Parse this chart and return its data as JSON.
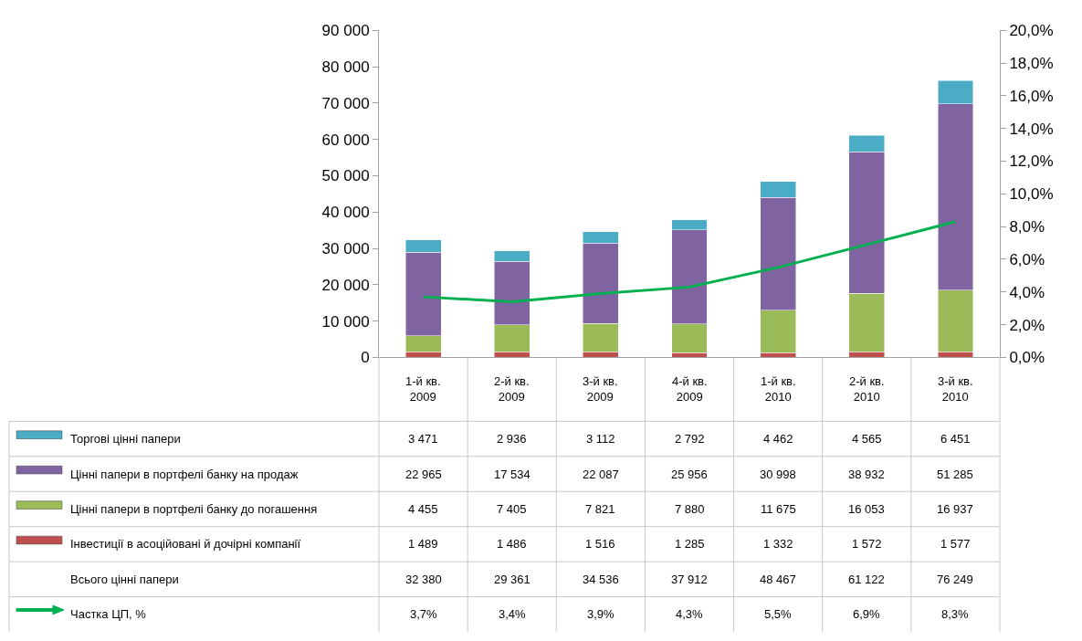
{
  "chart_data": {
    "type": "bar",
    "stacked": true,
    "data_labels": true,
    "legend": "bottom",
    "categories": [
      "1-й кв.\n2009",
      "2-й кв.\n2009",
      "3-й кв.\n2009",
      "4-й кв.\n2009",
      "1-й кв.\n2010",
      "2-й кв.\n2010",
      "3-й кв.\n2010"
    ],
    "series": [
      {
        "name": "Інвестиції в асоційовані й дочірні компанії",
        "color": "#c0504d",
        "values": [
          1489,
          1486,
          1516,
          1285,
          1332,
          1572,
          1577
        ]
      },
      {
        "name": "Цінні папери в портфелі банку до погашення",
        "color": "#9bbb59",
        "values": [
          4455,
          7405,
          7821,
          7880,
          11675,
          16053,
          16937
        ]
      },
      {
        "name": "Цінні папери в портфелі банку на продаж",
        "color": "#8064a2",
        "values": [
          22965,
          17534,
          22087,
          25956,
          30998,
          38932,
          51285
        ]
      },
      {
        "name": "Торгові цінні папери",
        "color": "#4bacc6",
        "values": [
          3471,
          2936,
          3112,
          2792,
          4462,
          4565,
          6451
        ]
      },
      {
        "name": "Частка ЦП, %",
        "type": "line",
        "axis": "y2",
        "color": "#00b050",
        "marker": "none",
        "line_style": "solid",
        "values": [
          3.7,
          3.4,
          3.9,
          4.3,
          5.5,
          6.9,
          8.3
        ],
        "value_labels": [
          "3,7%",
          "3,4%",
          "3,9%",
          "4,3%",
          "5,5%",
          "6,9%",
          "8,3%"
        ]
      }
    ],
    "annotations": [
      "Всього цінні папери",
      "32 380",
      "29 361",
      "34 536",
      "37 912",
      "48 467",
      "61 122",
      "76 249"
    ],
    "ylim": [
      0,
      90000
    ],
    "yticks": [
      {
        "value": 0,
        "label": "0"
      },
      {
        "value": 10000,
        "label": "10 000"
      },
      {
        "value": 20000,
        "label": "20 000"
      },
      {
        "value": 30000,
        "label": "30 000"
      },
      {
        "value": 40000,
        "label": "40 000"
      },
      {
        "value": 50000,
        "label": "50 000"
      },
      {
        "value": 60000,
        "label": "60 000"
      },
      {
        "value": 70000,
        "label": "70 000"
      },
      {
        "value": 80000,
        "label": "80 000"
      },
      {
        "value": 90000,
        "label": "90 000"
      }
    ],
    "y2lim": [
      0,
      20
    ],
    "y2ticks": [
      {
        "value": 0,
        "label": "0,0%"
      },
      {
        "value": 2,
        "label": "2,0%"
      },
      {
        "value": 4,
        "label": "4,0%"
      },
      {
        "value": 6,
        "label": "6,0%"
      },
      {
        "value": 8,
        "label": "8,0%"
      },
      {
        "value": 10,
        "label": "10,0%"
      },
      {
        "value": 12,
        "label": "12,0%"
      },
      {
        "value": 14,
        "label": "14,0%"
      },
      {
        "value": 16,
        "label": "16,0%"
      },
      {
        "value": 18,
        "label": "18,0%"
      },
      {
        "value": 20,
        "label": "20,0%"
      }
    ]
  }
}
